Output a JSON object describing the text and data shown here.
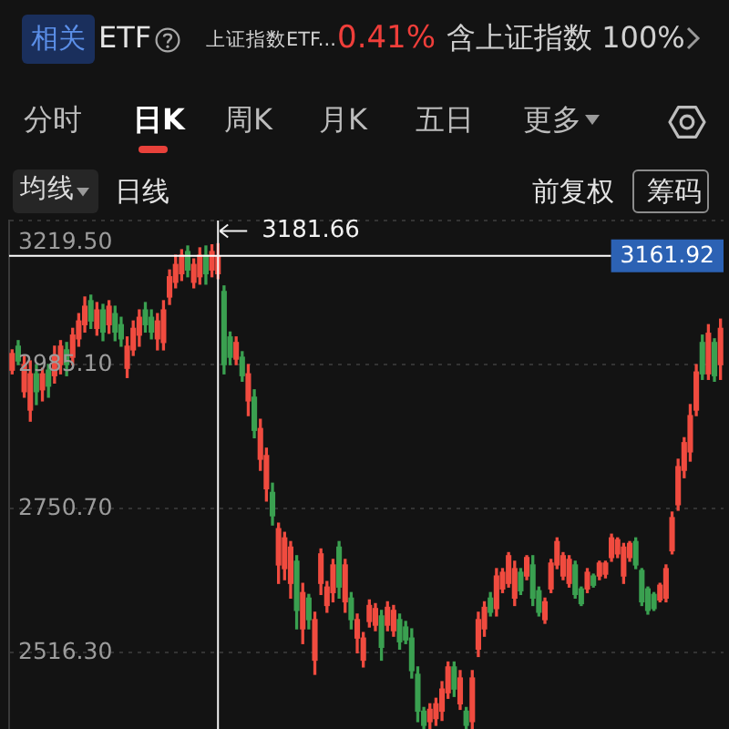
{
  "chart_data": {
    "type": "candlestick",
    "categories": [
      null,
      null,
      null,
      null,
      null,
      null,
      null,
      null,
      null,
      null,
      null,
      null,
      null,
      null,
      null,
      null,
      null,
      null,
      null,
      null,
      null,
      null,
      null,
      null,
      null,
      null,
      null,
      null,
      null,
      null,
      null,
      null,
      null,
      null,
      null,
      null,
      null,
      null,
      null,
      null,
      null,
      null,
      null,
      null,
      null,
      null,
      null,
      null,
      null,
      null,
      null,
      null,
      null,
      null,
      null,
      null,
      null,
      null,
      null,
      null,
      null,
      null,
      null,
      null,
      null,
      null,
      null,
      null,
      null,
      null,
      null,
      null,
      null,
      null,
      null,
      null,
      null,
      null,
      null,
      null,
      null,
      null,
      null,
      null,
      null,
      null,
      null,
      null,
      null,
      null,
      null,
      null,
      null,
      null,
      null,
      null,
      null,
      null,
      null,
      null,
      null,
      null,
      null,
      null,
      null,
      null,
      null,
      null,
      null,
      null,
      null,
      null,
      null,
      null,
      null,
      null,
      null,
      null
    ],
    "ohlc": [
      [
        2976,
        3009,
        2970,
        3003
      ],
      [
        3015,
        3024,
        2985,
        2991
      ],
      [
        2941,
        3000,
        2932,
        2985
      ],
      [
        2911,
        2991,
        2893,
        2970
      ],
      [
        2970,
        2985,
        2920,
        2941
      ],
      [
        2944,
        2979,
        2926,
        2970
      ],
      [
        2976,
        2985,
        2932,
        2950
      ],
      [
        2967,
        3015,
        2955,
        3000
      ],
      [
        2985,
        3024,
        2970,
        3015
      ],
      [
        3009,
        3021,
        2967,
        2985
      ],
      [
        2997,
        3044,
        2985,
        3033
      ],
      [
        3027,
        3068,
        3015,
        3056
      ],
      [
        3050,
        3095,
        3038,
        3080
      ],
      [
        3089,
        3098,
        3044,
        3056
      ],
      [
        3044,
        3086,
        3033,
        3074
      ],
      [
        3074,
        3083,
        3024,
        3038
      ],
      [
        3050,
        3089,
        3036,
        3080
      ],
      [
        3068,
        3080,
        3024,
        3038
      ],
      [
        3050,
        3062,
        3015,
        3027
      ],
      [
        2979,
        3030,
        2964,
        3015
      ],
      [
        3009,
        3056,
        3000,
        3044
      ],
      [
        3033,
        3074,
        3015,
        3062
      ],
      [
        3074,
        3086,
        3038,
        3050
      ],
      [
        3062,
        3074,
        3027,
        3038
      ],
      [
        3027,
        3068,
        3009,
        3056
      ],
      [
        3021,
        3089,
        3009,
        3074
      ],
      [
        3095,
        3139,
        3083,
        3128
      ],
      [
        3119,
        3163,
        3110,
        3148
      ],
      [
        3133,
        3172,
        3122,
        3163
      ],
      [
        3169,
        3178,
        3128,
        3139
      ],
      [
        3119,
        3157,
        3110,
        3148
      ],
      [
        3128,
        3175,
        3116,
        3163
      ],
      [
        3163,
        3178,
        3116,
        3133
      ],
      [
        3139,
        3180,
        3128,
        3169
      ],
      [
        3133,
        3181.66,
        3125,
        3161.92
      ],
      [
        3104,
        3113,
        2970,
        2985
      ],
      [
        3030,
        3038,
        2985,
        2997
      ],
      [
        2994,
        3030,
        2985,
        3021
      ],
      [
        2997,
        3006,
        2958,
        2967
      ],
      [
        2926,
        2985,
        2902,
        2970
      ],
      [
        2932,
        2944,
        2866,
        2878
      ],
      [
        2831,
        2896,
        2813,
        2881
      ],
      [
        2783,
        2849,
        2763,
        2837
      ],
      [
        2777,
        2792,
        2724,
        2739
      ],
      [
        2659,
        2727,
        2629,
        2718
      ],
      [
        2653,
        2712,
        2635,
        2703
      ],
      [
        2629,
        2697,
        2605,
        2688
      ],
      [
        2665,
        2674,
        2555,
        2585
      ],
      [
        2555,
        2629,
        2531,
        2614
      ],
      [
        2605,
        2611,
        2555,
        2570
      ],
      [
        2504,
        2582,
        2481,
        2570
      ],
      [
        2629,
        2685,
        2611,
        2677
      ],
      [
        2593,
        2632,
        2582,
        2623
      ],
      [
        2614,
        2668,
        2599,
        2659
      ],
      [
        2688,
        2697,
        2605,
        2623
      ],
      [
        2599,
        2668,
        2582,
        2659
      ],
      [
        2605,
        2614,
        2555,
        2570
      ],
      [
        2540,
        2579,
        2516,
        2570
      ],
      [
        2504,
        2549,
        2493,
        2540
      ],
      [
        2567,
        2602,
        2558,
        2593
      ],
      [
        2561,
        2596,
        2552,
        2588
      ],
      [
        2576,
        2585,
        2504,
        2525
      ],
      [
        2561,
        2599,
        2552,
        2590
      ],
      [
        2552,
        2593,
        2543,
        2585
      ],
      [
        2570,
        2579,
        2522,
        2534
      ],
      [
        2558,
        2567,
        2531,
        2537
      ],
      [
        2540,
        2555,
        2475,
        2487
      ],
      [
        2481,
        2493,
        2404,
        2421
      ],
      [
        2421,
        2427,
        2393,
        2398
      ],
      [
        2404,
        2433,
        2393,
        2424
      ],
      [
        2409,
        2442,
        2398,
        2433
      ],
      [
        2421,
        2469,
        2406,
        2457
      ],
      [
        2451,
        2501,
        2442,
        2493
      ],
      [
        2493,
        2501,
        2445,
        2457
      ],
      [
        2433,
        2487,
        2424,
        2475
      ],
      [
        2421,
        2427,
        2393,
        2398
      ],
      [
        2404,
        2487,
        2393,
        2475
      ],
      [
        2522,
        2582,
        2510,
        2570
      ],
      [
        2555,
        2599,
        2543,
        2590
      ],
      [
        2605,
        2614,
        2576,
        2582
      ],
      [
        2588,
        2653,
        2576,
        2641
      ],
      [
        2620,
        2653,
        2614,
        2647
      ],
      [
        2629,
        2679,
        2623,
        2674
      ],
      [
        2605,
        2665,
        2593,
        2653
      ],
      [
        2647,
        2653,
        2611,
        2617
      ],
      [
        2641,
        2674,
        2635,
        2671
      ],
      [
        2659,
        2674,
        2593,
        2605
      ],
      [
        2617,
        2623,
        2576,
        2582
      ],
      [
        2570,
        2605,
        2564,
        2599
      ],
      [
        2620,
        2668,
        2614,
        2662
      ],
      [
        2659,
        2703,
        2653,
        2697
      ],
      [
        2641,
        2679,
        2635,
        2674
      ],
      [
        2629,
        2674,
        2623,
        2668
      ],
      [
        2659,
        2665,
        2605,
        2611
      ],
      [
        2620,
        2623,
        2593,
        2596
      ],
      [
        2620,
        2653,
        2614,
        2647
      ],
      [
        2641,
        2644,
        2623,
        2626
      ],
      [
        2641,
        2665,
        2635,
        2662
      ],
      [
        2644,
        2665,
        2638,
        2662
      ],
      [
        2671,
        2709,
        2665,
        2703
      ],
      [
        2677,
        2703,
        2671,
        2700
      ],
      [
        2641,
        2694,
        2629,
        2688
      ],
      [
        2671,
        2697,
        2665,
        2694
      ],
      [
        2697,
        2703,
        2653,
        2659
      ],
      [
        2650,
        2653,
        2593,
        2599
      ],
      [
        2620,
        2623,
        2579,
        2585
      ],
      [
        2611,
        2614,
        2585,
        2588
      ],
      [
        2602,
        2629,
        2599,
        2626
      ],
      [
        2605,
        2659,
        2599,
        2653
      ],
      [
        2682,
        2745,
        2677,
        2736
      ],
      [
        2757,
        2831,
        2748,
        2819
      ],
      [
        2813,
        2866,
        2801,
        2858
      ],
      [
        2843,
        2920,
        2828,
        2902
      ],
      [
        2911,
        2985,
        2902,
        2973
      ],
      [
        3021,
        3033,
        2961,
        2970
      ],
      [
        2970,
        3050,
        2961,
        3036
      ],
      [
        3021,
        3027,
        2958,
        2967
      ],
      [
        2985,
        3059,
        2961,
        3044
      ]
    ],
    "colors": [
      "#f04b3f",
      "#3aa050",
      "#f04b3f",
      "#f04b3f",
      "#3aa050",
      "#f04b3f",
      "#3aa050",
      "#f04b3f",
      "#f04b3f",
      "#3aa050",
      "#f04b3f",
      "#f04b3f",
      "#f04b3f",
      "#3aa050",
      "#f04b3f",
      "#3aa050",
      "#f04b3f",
      "#3aa050",
      "#3aa050",
      "#f04b3f",
      "#f04b3f",
      "#f04b3f",
      "#3aa050",
      "#3aa050",
      "#f04b3f",
      "#f04b3f",
      "#f04b3f",
      "#f04b3f",
      "#f04b3f",
      "#3aa050",
      "#f04b3f",
      "#f04b3f",
      "#3aa050",
      "#f04b3f",
      "#f04b3f",
      "#3aa050",
      "#3aa050",
      "#f04b3f",
      "#3aa050",
      "#f04b3f",
      "#3aa050",
      "#f04b3f",
      "#f04b3f",
      "#3aa050",
      "#f04b3f",
      "#f04b3f",
      "#f04b3f",
      "#3aa050",
      "#f04b3f",
      "#3aa050",
      "#f04b3f",
      "#f04b3f",
      "#f04b3f",
      "#f04b3f",
      "#3aa050",
      "#f04b3f",
      "#3aa050",
      "#f04b3f",
      "#f04b3f",
      "#f04b3f",
      "#f04b3f",
      "#3aa050",
      "#f04b3f",
      "#f04b3f",
      "#3aa050",
      "#3aa050",
      "#3aa050",
      "#3aa050",
      "#3aa050",
      "#f04b3f",
      "#f04b3f",
      "#f04b3f",
      "#f04b3f",
      "#3aa050",
      "#f04b3f",
      "#3aa050",
      "#f04b3f",
      "#f04b3f",
      "#f04b3f",
      "#3aa050",
      "#f04b3f",
      "#f04b3f",
      "#f04b3f",
      "#f04b3f",
      "#3aa050",
      "#f04b3f",
      "#3aa050",
      "#3aa050",
      "#f04b3f",
      "#f04b3f",
      "#f04b3f",
      "#f04b3f",
      "#f04b3f",
      "#3aa050",
      "#3aa050",
      "#f04b3f",
      "#3aa050",
      "#f04b3f",
      "#f04b3f",
      "#f04b3f",
      "#f04b3f",
      "#f04b3f",
      "#f04b3f",
      "#3aa050",
      "#3aa050",
      "#3aa050",
      "#3aa050",
      "#f04b3f",
      "#f04b3f",
      "#f04b3f",
      "#f04b3f",
      "#f04b3f",
      "#f04b3f",
      "#f04b3f",
      "#3aa050",
      "#f04b3f",
      "#3aa050",
      "#f04b3f"
    ],
    "ylim": [
      2392,
      3219.5
    ],
    "yticks": [
      {
        "value": 3219.5,
        "label": "3219.50"
      },
      {
        "value": 2985.1,
        "label": "2985.10"
      },
      {
        "value": 2750.7,
        "label": "2750.70"
      },
      {
        "value": 2516.3,
        "label": "2516.30"
      }
    ],
    "grid": "y",
    "tick_labels": "y",
    "ref_lines": [
      {
        "axis": "y",
        "value": 3161.92,
        "label": "3161.92",
        "color": "#ffffff"
      }
    ],
    "annotations": [
      "相关",
      "ETF",
      "上证指数ETF...",
      "0.41%",
      "含上证指数 100%",
      "分时",
      "日K",
      "周K",
      "月K",
      "五日",
      "更多",
      "均线",
      "日线",
      "前复权",
      "筹码",
      "3181.66"
    ]
  }
}
